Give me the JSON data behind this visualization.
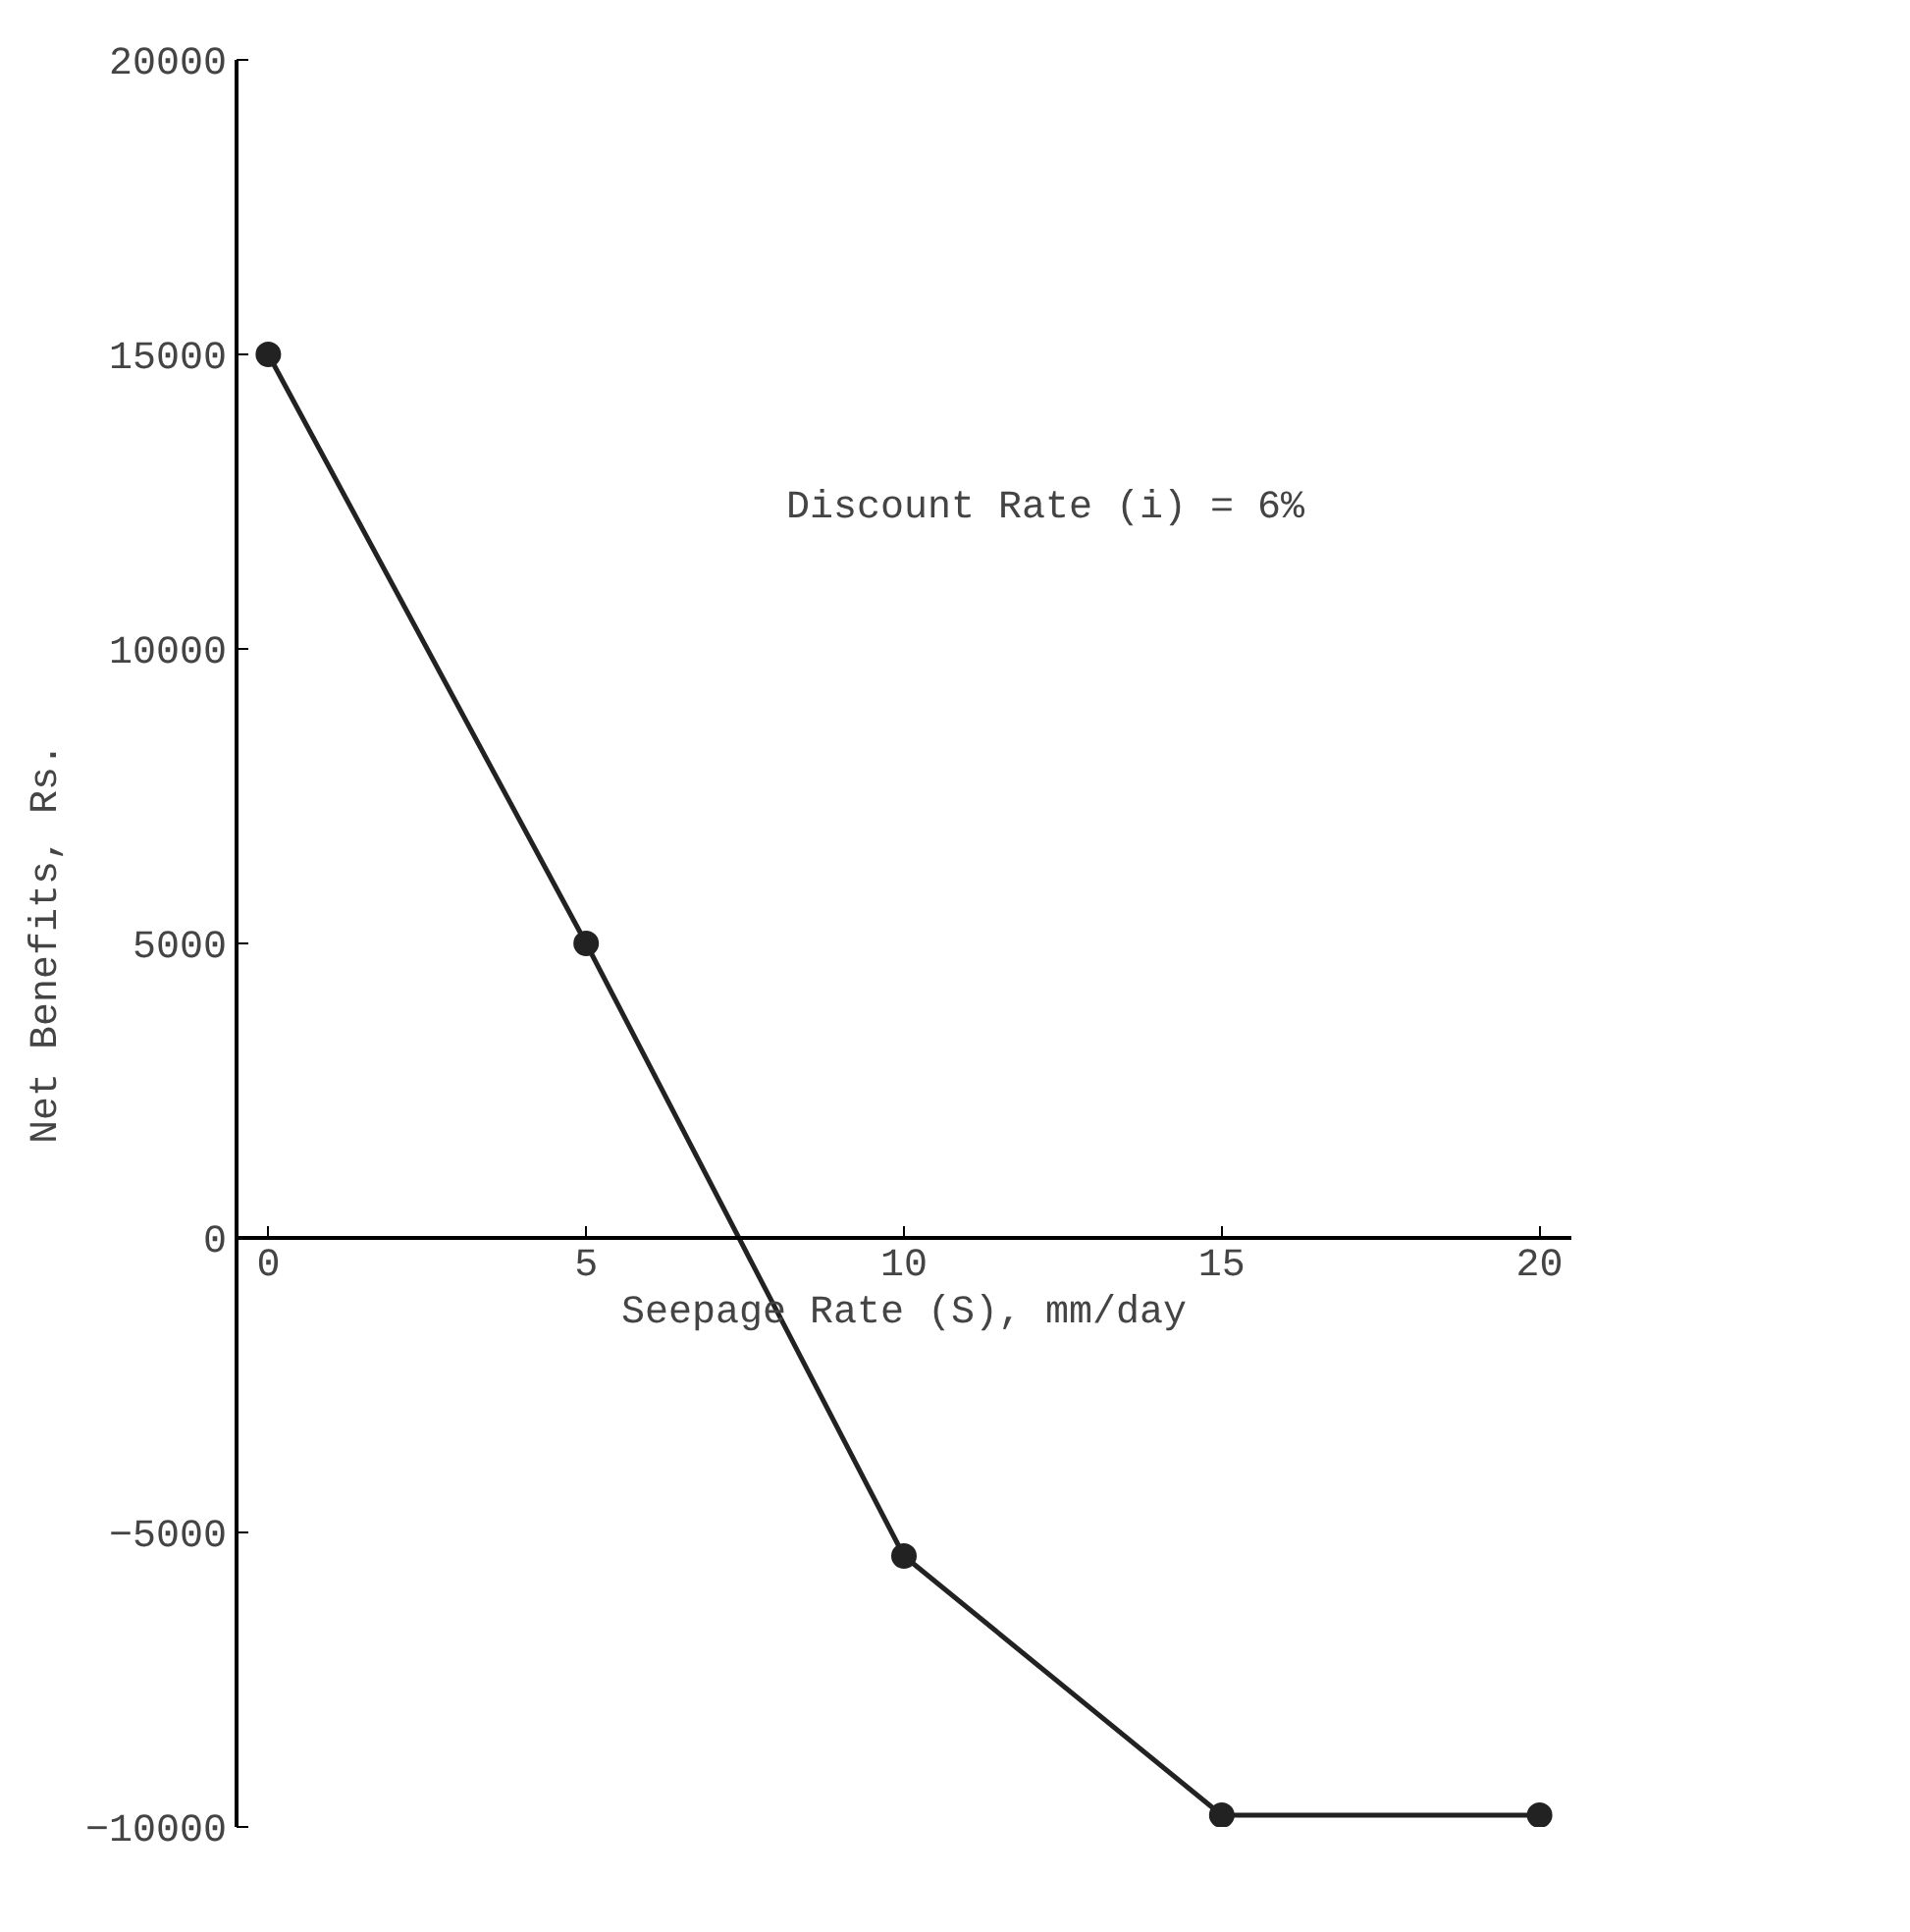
{
  "chart_data": {
    "type": "line",
    "xlabel": "Seepage Rate (S), mm/day",
    "ylabel": "Net Benefits, Rs.",
    "annotations": [
      "Discount Rate (i) = 6%"
    ],
    "x": [
      0,
      5,
      10,
      15,
      20
    ],
    "series": [
      {
        "color": "#222222",
        "values": [
          15000,
          5000,
          -5400,
          -9800,
          -9800
        ]
      }
    ],
    "xlim": [
      -0.5,
      20.5
    ],
    "ylim": [
      -10000,
      20000
    ],
    "xticks": [
      0,
      5,
      10,
      15,
      20
    ],
    "yticks": [
      -10000,
      -5000,
      0,
      5000,
      10000,
      15000,
      20000
    ],
    "marker": "circle",
    "line_style": "solid",
    "grid": false
  }
}
